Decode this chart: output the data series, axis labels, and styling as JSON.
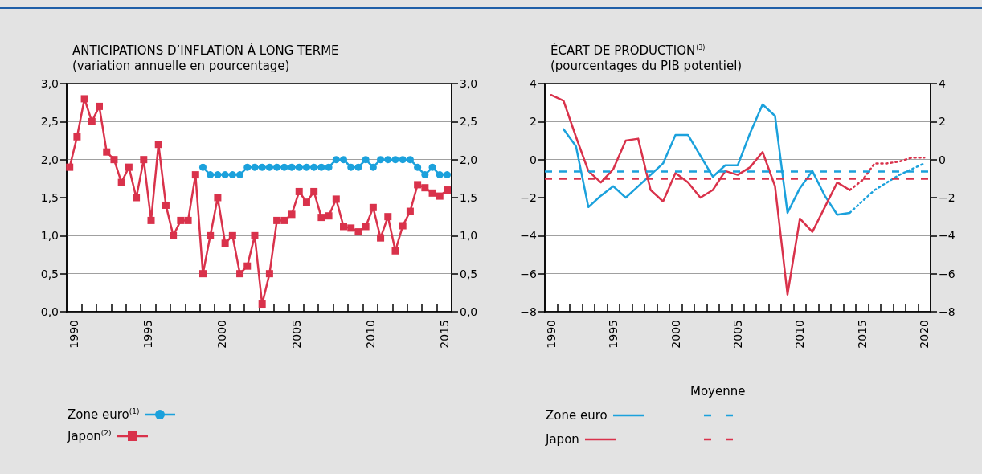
{
  "chart_data": [
    {
      "type": "line",
      "title": "ANTICIPATIONS D’INFLATION À LONG TERME",
      "subtitle": "(variation annuelle en pourcentage)",
      "xlim": [
        1990,
        2016
      ],
      "xticks": [
        {
          "value": 1990.5,
          "label": "1990"
        },
        {
          "value": 1995.5,
          "label": "1995"
        },
        {
          "value": 2000.5,
          "label": "2000"
        },
        {
          "value": 2005.5,
          "label": "2005"
        },
        {
          "value": 2010.5,
          "label": "2010"
        },
        {
          "value": 2015.5,
          "label": "2015"
        },
        {
          "value": 1991,
          "label": null
        },
        {
          "value": 1992,
          "label": null
        },
        {
          "value": 1993,
          "label": null
        },
        {
          "value": 1994,
          "label": null
        },
        {
          "value": 1995,
          "label": null
        },
        {
          "value": 1996,
          "label": null
        },
        {
          "value": 1997,
          "label": null
        },
        {
          "value": 1998,
          "label": null
        },
        {
          "value": 1999,
          "label": null
        },
        {
          "value": 2000,
          "label": null
        },
        {
          "value": 2001,
          "label": null
        },
        {
          "value": 2002,
          "label": null
        },
        {
          "value": 2003,
          "label": null
        },
        {
          "value": 2004,
          "label": null
        },
        {
          "value": 2005,
          "label": null
        },
        {
          "value": 2006,
          "label": null
        },
        {
          "value": 2007,
          "label": null
        },
        {
          "value": 2008,
          "label": null
        },
        {
          "value": 2009,
          "label": null
        },
        {
          "value": 2010,
          "label": null
        },
        {
          "value": 2011,
          "label": null
        },
        {
          "value": 2012,
          "label": null
        },
        {
          "value": 2013,
          "label": null
        },
        {
          "value": 2014,
          "label": null
        },
        {
          "value": 2015,
          "label": null
        }
      ],
      "ylim": [
        0,
        3
      ],
      "yticks": [
        {
          "value": 0,
          "label": "0,0"
        },
        {
          "value": 0.5,
          "label": "0,5"
        },
        {
          "value": 1,
          "label": "1,0"
        },
        {
          "value": 1.5,
          "label": "1,5"
        },
        {
          "value": 2,
          "label": "2,0"
        },
        {
          "value": 2.5,
          "label": "2,5"
        },
        {
          "value": 3,
          "label": "3,0"
        }
      ],
      "y2lim": [
        0,
        3
      ],
      "y2ticks": [
        {
          "value": 0,
          "label": "0,0"
        },
        {
          "value": 0.5,
          "label": "0,5"
        },
        {
          "value": 1,
          "label": "1,0"
        },
        {
          "value": 1.5,
          "label": "1,5"
        },
        {
          "value": 2,
          "label": "2,0"
        },
        {
          "value": 2.5,
          "label": "2,5"
        },
        {
          "value": 3,
          "label": "3,0"
        }
      ],
      "grid": "y",
      "legend": "bottom left",
      "series": [
        {
          "name": "Zone euro$^{(1)}$",
          "color": "#1ba1dc",
          "marker": "circle",
          "x": [
            1999.2,
            1999.7,
            2000.2,
            2000.7,
            2001.2,
            2001.7,
            2002.2,
            2002.7,
            2003.2,
            2003.7,
            2004.2,
            2004.7,
            2005.2,
            2005.7,
            2006.2,
            2006.7,
            2007.2,
            2007.7,
            2008.2,
            2008.7,
            2009.2,
            2009.7,
            2010.2,
            2010.7,
            2011.2,
            2011.7,
            2012.2,
            2012.7,
            2013.2,
            2013.7,
            2014.2,
            2014.7,
            2015.2,
            2015.7
          ],
          "values": [
            1.9,
            1.8,
            1.8,
            1.8,
            1.8,
            1.8,
            1.9,
            1.9,
            1.9,
            1.9,
            1.9,
            1.9,
            1.9,
            1.9,
            1.9,
            1.9,
            1.9,
            1.9,
            2.0,
            2.0,
            1.9,
            1.9,
            2.0,
            1.9,
            2.0,
            2.0,
            2.0,
            2.0,
            2.0,
            1.9,
            1.8,
            1.9,
            1.8,
            1.8
          ]
        },
        {
          "name": "Japon$^{(2)}$",
          "color": "#d9324b",
          "marker": "square",
          "x": [
            1990.2,
            1990.7,
            1991.2,
            1991.7,
            1992.2,
            1992.7,
            1993.2,
            1993.7,
            1994.2,
            1994.7,
            1995.2,
            1995.7,
            1996.2,
            1996.7,
            1997.2,
            1997.7,
            1998.2,
            1998.7,
            1999.2,
            1999.7,
            2000.2,
            2000.7,
            2001.2,
            2001.7,
            2002.2,
            2002.7,
            2003.2,
            2003.7,
            2004.2,
            2004.7,
            2005.2,
            2005.7,
            2006.2,
            2006.7,
            2007.2,
            2007.7,
            2008.2,
            2008.7,
            2009.2,
            2009.7,
            2010.2,
            2010.7,
            2011.2,
            2011.7,
            2012.2,
            2012.7,
            2013.2,
            2013.7,
            2014.2,
            2014.7,
            2015.2,
            2015.7
          ],
          "values": [
            1.9,
            2.3,
            2.8,
            2.5,
            2.7,
            2.1,
            2.0,
            1.7,
            1.9,
            1.5,
            2.0,
            1.2,
            2.2,
            1.4,
            1.0,
            1.2,
            1.2,
            1.8,
            0.5,
            1.0,
            1.5,
            0.9,
            1.0,
            0.5,
            0.6,
            1.0,
            0.1,
            0.5,
            1.2,
            1.2,
            1.28,
            1.58,
            1.44,
            1.58,
            1.24,
            1.26,
            1.48,
            1.12,
            1.1,
            1.05,
            1.12,
            1.37,
            0.97,
            1.25,
            0.8,
            1.13,
            1.32,
            1.67,
            1.63,
            1.56,
            1.52,
            1.6
          ]
        }
      ]
    },
    {
      "type": "line",
      "title": "ÉCART DE PRODUCTION$^{(3)}$",
      "subtitle": "(pourcentages du PIB potentiel)",
      "xlim": [
        1989.5,
        2020.5
      ],
      "xticks": [
        {
          "value": 1990,
          "label": "1990"
        },
        {
          "value": 1995,
          "label": "1995"
        },
        {
          "value": 2000,
          "label": "2000"
        },
        {
          "value": 2005,
          "label": "2005"
        },
        {
          "value": 2010,
          "label": "2010"
        },
        {
          "value": 2015,
          "label": "2015"
        },
        {
          "value": 2020,
          "label": "2020"
        },
        {
          "value": 1990.5,
          "label": null
        },
        {
          "value": 1991.5,
          "label": null
        },
        {
          "value": 1992.5,
          "label": null
        },
        {
          "value": 1993.5,
          "label": null
        },
        {
          "value": 1994.5,
          "label": null
        },
        {
          "value": 1995.5,
          "label": null
        },
        {
          "value": 1996.5,
          "label": null
        },
        {
          "value": 1997.5,
          "label": null
        },
        {
          "value": 1998.5,
          "label": null
        },
        {
          "value": 1999.5,
          "label": null
        },
        {
          "value": 2000.5,
          "label": null
        },
        {
          "value": 2001.5,
          "label": null
        },
        {
          "value": 2002.5,
          "label": null
        },
        {
          "value": 2003.5,
          "label": null
        },
        {
          "value": 2004.5,
          "label": null
        },
        {
          "value": 2005.5,
          "label": null
        },
        {
          "value": 2006.5,
          "label": null
        },
        {
          "value": 2007.5,
          "label": null
        },
        {
          "value": 2008.5,
          "label": null
        },
        {
          "value": 2009.5,
          "label": null
        },
        {
          "value": 2010.5,
          "label": null
        },
        {
          "value": 2011.5,
          "label": null
        },
        {
          "value": 2012.5,
          "label": null
        },
        {
          "value": 2013.5,
          "label": null
        },
        {
          "value": 2014.5,
          "label": null
        },
        {
          "value": 2015.5,
          "label": null
        },
        {
          "value": 2016.5,
          "label": null
        },
        {
          "value": 2017.5,
          "label": null
        },
        {
          "value": 2018.5,
          "label": null
        },
        {
          "value": 2019.5,
          "label": null
        }
      ],
      "ylim": [
        -8,
        4
      ],
      "yticks": [
        {
          "value": -8,
          "label": "−8"
        },
        {
          "value": -6,
          "label": "−6"
        },
        {
          "value": -4,
          "label": "−4"
        },
        {
          "value": -2,
          "label": "−2"
        },
        0,
        2,
        4
      ],
      "y2lim": [
        -8,
        4
      ],
      "y2ticks": [
        {
          "value": -8,
          "label": "−8"
        },
        {
          "value": -6,
          "label": "−6"
        },
        {
          "value": -4,
          "label": "−4"
        },
        {
          "value": -2,
          "label": "−2"
        },
        0,
        2,
        4
      ],
      "grid": "y",
      "legend": "bottom left",
      "annotations": [
        "Moyenne"
      ],
      "ref_lines": [
        {
          "axis": "y",
          "value": -0.6,
          "color": "#1ba1dc",
          "line_style": "dashed"
        },
        {
          "axis": "y",
          "value": -1.0,
          "color": "#d9324b",
          "line_style": "dashed"
        }
      ],
      "series": [
        {
          "name": "Zone euro",
          "color": "#1ba1dc",
          "line_style": "solid",
          "x": [
            1991,
            1992,
            1993,
            1994,
            1995,
            1996,
            1997,
            1998,
            1999,
            2000,
            2001,
            2002,
            2003,
            2004,
            2005,
            2006,
            2007,
            2008,
            2009,
            2010,
            2011,
            2012,
            2013,
            2014
          ],
          "values": [
            1.6,
            0.7,
            -2.5,
            -1.9,
            -1.4,
            -2.0,
            -1.4,
            -0.8,
            -0.2,
            1.3,
            1.3,
            0.2,
            -0.9,
            -0.3,
            -0.3,
            1.4,
            2.9,
            2.3,
            -2.8,
            -1.5,
            -0.6,
            -1.9,
            -2.9,
            -2.8
          ]
        },
        {
          "name": "Japon",
          "color": "#d9324b",
          "line_style": "solid",
          "x": [
            1990,
            1991,
            1992,
            1993,
            1994,
            1995,
            1996,
            1997,
            1998,
            1999,
            2000,
            2001,
            2002,
            2003,
            2004,
            2005,
            2006,
            2007,
            2008,
            2009,
            2010,
            2011,
            2012,
            2013,
            2014
          ],
          "values": [
            3.4,
            3.1,
            1.2,
            -0.6,
            -1.2,
            -0.5,
            1.0,
            1.1,
            -1.6,
            -2.2,
            -0.7,
            -1.2,
            -2.0,
            -1.6,
            -0.6,
            -0.8,
            -0.4,
            0.4,
            -1.4,
            -7.1,
            -3.1,
            -3.8,
            -2.5,
            -1.2,
            -1.6
          ]
        },
        {
          "color": "#1ba1dc",
          "line_style": "dotted",
          "x": [
            2014,
            2015,
            2016,
            2017,
            2018,
            2019,
            2020
          ],
          "values": [
            -2.8,
            -2.2,
            -1.6,
            -1.2,
            -0.8,
            -0.5,
            -0.2
          ]
        },
        {
          "color": "#d9324b",
          "line_style": "dotted",
          "x": [
            2014,
            2015,
            2016,
            2017,
            2018,
            2019,
            2020
          ],
          "values": [
            -1.6,
            -1.1,
            -0.2,
            -0.2,
            -0.1,
            0.1,
            0.1
          ]
        }
      ]
    }
  ]
}
